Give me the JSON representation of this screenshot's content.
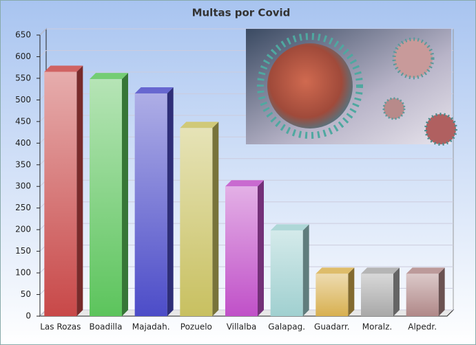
{
  "chart_data": {
    "type": "bar3d",
    "title": "Multas por Covid",
    "categories": [
      "Las Rozas",
      "Boadilla",
      "Majadah.",
      "Pozuelo",
      "Villalba",
      "Galapag.",
      "Guadarr.",
      "Moralz.",
      "Alpedr."
    ],
    "values": [
      565,
      548,
      515,
      435,
      300,
      198,
      98,
      98,
      98
    ],
    "colors": [
      "#c84848",
      "#5cc45c",
      "#4c4cc8",
      "#c8c060",
      "#c050c8",
      "#a0d0d0",
      "#d8b050",
      "#a8a8a8",
      "#b08888"
    ],
    "ylim": [
      0,
      650
    ],
    "yticks": [
      0,
      50,
      100,
      150,
      200,
      250,
      300,
      350,
      400,
      450,
      500,
      550,
      600,
      650
    ],
    "grid": true
  }
}
